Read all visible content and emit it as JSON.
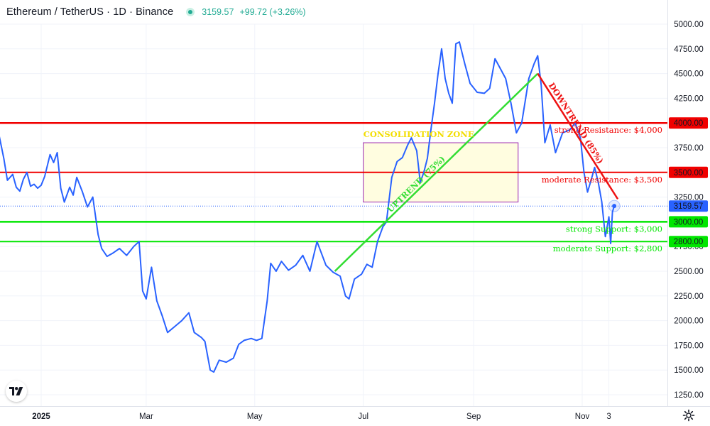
{
  "header": {
    "symbol": "Ethereum / TetherUS · 1D · Binance",
    "price": "3159.57",
    "change": "+99.72 (+3.26%)"
  },
  "colors": {
    "price_line": "#2962ff",
    "resistance": "#f00000",
    "support": "#00e600",
    "uptrend": "#33dd33",
    "downtrend": "#ee1111",
    "zone_fill": "#fffde0",
    "zone_border": "#9c27b0",
    "zone_label": "#f2dd00",
    "current_price_tag": "#2962ff"
  },
  "icons": {
    "logo": "tradingview-logo-icon",
    "settings": "gear-icon",
    "live": "live-status-dot-icon"
  },
  "annotations": {
    "strong_resistance": "strong Resistance: $4,000",
    "moderate_resistance": "moderate Resistance: $3,500",
    "strong_support": "strong Support: $3,000",
    "moderate_support": "moderate Support: $2,800",
    "zone_label": "CONSOLIDATION ZONE",
    "uptrend_label": "UPTREND (75%)",
    "downtrend_label": "DOWNTREND (85%)"
  },
  "chart_data": {
    "type": "line",
    "ylim": [
      1000,
      5200
    ],
    "y_ticks": [
      1250,
      1500,
      1750,
      2000,
      2250,
      2500,
      2750,
      3000,
      3250,
      3500,
      3750,
      4000,
      4250,
      4500,
      4750,
      5000
    ],
    "y_tick_labels": [
      "1250.00",
      "1500.00",
      "1750.00",
      "2000.00",
      "2250.00",
      "2500.00",
      "2750.00",
      "3000.00",
      "3250.00",
      "3500.00",
      "3750.00",
      "4000.00",
      "4250.00",
      "4500.00",
      "4750.00",
      "5000.00"
    ],
    "x_range": [
      "2024-12-01",
      "2025-11-20"
    ],
    "x_ticks": [
      {
        "date": "2025-01-01",
        "label": "2025"
      },
      {
        "date": "2025-03-01",
        "label": "Mar"
      },
      {
        "date": "2025-05-01",
        "label": "May"
      },
      {
        "date": "2025-07-01",
        "label": "Jul"
      },
      {
        "date": "2025-09-01",
        "label": "Sep"
      },
      {
        "date": "2025-11-01",
        "label": "Nov"
      },
      {
        "date": "2025-11-16",
        "label": "3"
      }
    ],
    "grid": true,
    "series": [
      {
        "values": [
          [
            "2024-12-01",
            3700
          ],
          [
            "2024-12-03",
            3880
          ],
          [
            "2024-12-05",
            3920
          ],
          [
            "2024-12-07",
            3990
          ],
          [
            "2024-12-09",
            3820
          ],
          [
            "2024-12-11",
            3640
          ],
          [
            "2024-12-13",
            3420
          ],
          [
            "2024-12-16",
            3480
          ],
          [
            "2024-12-18",
            3350
          ],
          [
            "2024-12-20",
            3310
          ],
          [
            "2024-12-22",
            3430
          ],
          [
            "2024-12-24",
            3500
          ],
          [
            "2024-12-26",
            3360
          ],
          [
            "2024-12-28",
            3380
          ],
          [
            "2024-12-30",
            3340
          ],
          [
            "2025-01-01",
            3370
          ],
          [
            "2025-01-03",
            3460
          ],
          [
            "2025-01-06",
            3680
          ],
          [
            "2025-01-08",
            3600
          ],
          [
            "2025-01-10",
            3700
          ],
          [
            "2025-01-12",
            3340
          ],
          [
            "2025-01-14",
            3200
          ],
          [
            "2025-01-17",
            3350
          ],
          [
            "2025-01-19",
            3270
          ],
          [
            "2025-01-21",
            3450
          ],
          [
            "2025-01-24",
            3310
          ],
          [
            "2025-01-27",
            3150
          ],
          [
            "2025-01-30",
            3250
          ],
          [
            "2025-02-02",
            2870
          ],
          [
            "2025-02-04",
            2730
          ],
          [
            "2025-02-07",
            2650
          ],
          [
            "2025-02-10",
            2680
          ],
          [
            "2025-02-14",
            2730
          ],
          [
            "2025-02-18",
            2660
          ],
          [
            "2025-02-22",
            2750
          ],
          [
            "2025-02-25",
            2800
          ],
          [
            "2025-02-27",
            2300
          ],
          [
            "2025-03-01",
            2220
          ],
          [
            "2025-03-04",
            2540
          ],
          [
            "2025-03-07",
            2200
          ],
          [
            "2025-03-10",
            2050
          ],
          [
            "2025-03-13",
            1880
          ],
          [
            "2025-03-17",
            1940
          ],
          [
            "2025-03-21",
            2000
          ],
          [
            "2025-03-25",
            2080
          ],
          [
            "2025-03-28",
            1880
          ],
          [
            "2025-04-01",
            1830
          ],
          [
            "2025-04-03",
            1790
          ],
          [
            "2025-04-06",
            1500
          ],
          [
            "2025-04-08",
            1480
          ],
          [
            "2025-04-11",
            1600
          ],
          [
            "2025-04-15",
            1580
          ],
          [
            "2025-04-19",
            1620
          ],
          [
            "2025-04-22",
            1760
          ],
          [
            "2025-04-25",
            1800
          ],
          [
            "2025-04-29",
            1820
          ],
          [
            "2025-05-02",
            1800
          ],
          [
            "2025-05-05",
            1820
          ],
          [
            "2025-05-08",
            2200
          ],
          [
            "2025-05-10",
            2580
          ],
          [
            "2025-05-13",
            2500
          ],
          [
            "2025-05-16",
            2600
          ],
          [
            "2025-05-20",
            2510
          ],
          [
            "2025-05-24",
            2560
          ],
          [
            "2025-05-28",
            2660
          ],
          [
            "2025-06-01",
            2500
          ],
          [
            "2025-06-05",
            2800
          ],
          [
            "2025-06-10",
            2560
          ],
          [
            "2025-06-14",
            2490
          ],
          [
            "2025-06-18",
            2450
          ],
          [
            "2025-06-21",
            2250
          ],
          [
            "2025-06-23",
            2220
          ],
          [
            "2025-06-26",
            2420
          ],
          [
            "2025-06-30",
            2470
          ],
          [
            "2025-07-03",
            2570
          ],
          [
            "2025-07-06",
            2540
          ],
          [
            "2025-07-09",
            2800
          ],
          [
            "2025-07-12",
            2950
          ],
          [
            "2025-07-14",
            3000
          ],
          [
            "2025-07-17",
            3450
          ],
          [
            "2025-07-20",
            3610
          ],
          [
            "2025-07-23",
            3650
          ],
          [
            "2025-07-26",
            3780
          ],
          [
            "2025-07-28",
            3850
          ],
          [
            "2025-07-31",
            3720
          ],
          [
            "2025-08-02",
            3400
          ],
          [
            "2025-08-04",
            3500
          ],
          [
            "2025-08-06",
            3640
          ],
          [
            "2025-08-08",
            3930
          ],
          [
            "2025-08-10",
            4200
          ],
          [
            "2025-08-12",
            4500
          ],
          [
            "2025-08-14",
            4750
          ],
          [
            "2025-08-16",
            4450
          ],
          [
            "2025-08-18",
            4300
          ],
          [
            "2025-08-20",
            4200
          ],
          [
            "2025-08-22",
            4800
          ],
          [
            "2025-08-24",
            4820
          ],
          [
            "2025-08-27",
            4600
          ],
          [
            "2025-08-30",
            4400
          ],
          [
            "2025-09-03",
            4310
          ],
          [
            "2025-09-07",
            4300
          ],
          [
            "2025-09-10",
            4350
          ],
          [
            "2025-09-13",
            4650
          ],
          [
            "2025-09-16",
            4550
          ],
          [
            "2025-09-19",
            4450
          ],
          [
            "2025-09-22",
            4200
          ],
          [
            "2025-09-25",
            3900
          ],
          [
            "2025-09-28",
            4000
          ],
          [
            "2025-10-02",
            4450
          ],
          [
            "2025-10-05",
            4600
          ],
          [
            "2025-10-07",
            4680
          ],
          [
            "2025-10-09",
            4380
          ],
          [
            "2025-10-11",
            3800
          ],
          [
            "2025-10-14",
            3980
          ],
          [
            "2025-10-17",
            3700
          ],
          [
            "2025-10-21",
            3900
          ],
          [
            "2025-10-25",
            3930
          ],
          [
            "2025-10-28",
            4000
          ],
          [
            "2025-10-31",
            3850
          ],
          [
            "2025-11-02",
            3500
          ],
          [
            "2025-11-04",
            3300
          ],
          [
            "2025-11-06",
            3420
          ],
          [
            "2025-11-08",
            3550
          ],
          [
            "2025-11-10",
            3400
          ],
          [
            "2025-11-12",
            3200
          ],
          [
            "2025-11-14",
            2850
          ],
          [
            "2025-11-15",
            2950
          ],
          [
            "2025-11-16",
            3050
          ],
          [
            "2025-11-17",
            2780
          ],
          [
            "2025-11-18",
            3100
          ],
          [
            "2025-11-19",
            3160
          ]
        ]
      }
    ],
    "levels": [
      {
        "value": 4000,
        "label": "strong Resistance: $4,000",
        "kind": "resistance"
      },
      {
        "value": 3500,
        "label": "moderate Resistance: $3,500",
        "kind": "resistance"
      },
      {
        "value": 3000,
        "label": "strong Support: $3,000",
        "kind": "support"
      },
      {
        "value": 2800,
        "label": "moderate Support: $2,800",
        "kind": "support"
      }
    ],
    "price_tags": [
      "4000.00",
      "3500.00",
      "3159.57",
      "3000.00",
      "2800.00"
    ],
    "consolidation_zone": {
      "x": [
        "2025-07-01",
        "2025-09-26"
      ],
      "y": [
        3200,
        3800
      ],
      "label": "CONSOLIDATION ZONE"
    },
    "trendlines": [
      {
        "label": "UPTREND (75%)",
        "from": [
          "2025-06-15",
          2500
        ],
        "to": [
          "2025-10-07",
          4500
        ]
      },
      {
        "label": "DOWNTREND (85%)",
        "from": [
          "2025-10-07",
          4500
        ],
        "to": [
          "2025-11-21",
          3230
        ]
      }
    ],
    "current_price": 3159.57
  }
}
